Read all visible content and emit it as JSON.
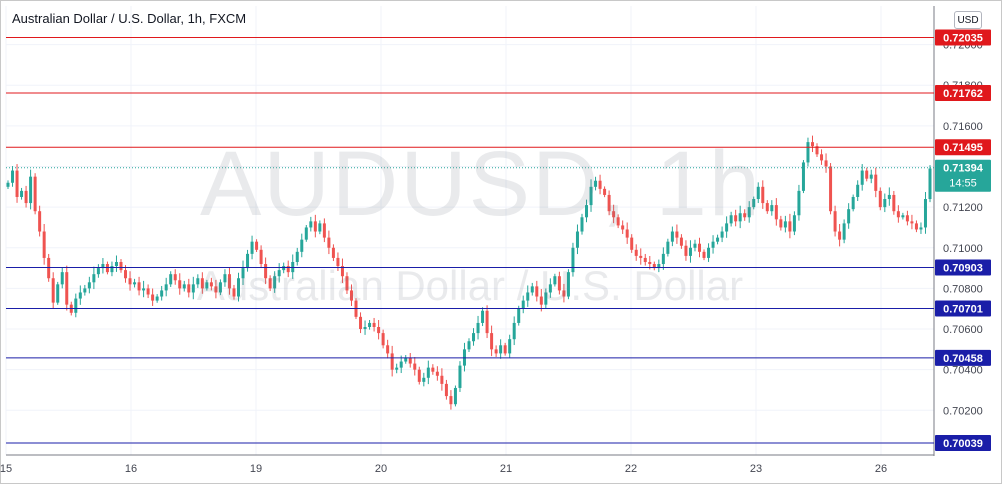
{
  "header": {
    "title": "Australian Dollar / U.S. Dollar, 1h, FXCM",
    "currency": "USD"
  },
  "watermark": {
    "symbol": "AUDUSD, 1h",
    "name": "Australian Dollar / U.S. Dollar"
  },
  "colors": {
    "up": "#26a69a",
    "down": "#ef5350",
    "resistance": "#e0181c",
    "support": "#1a1ea8",
    "current": "#26a69a"
  },
  "chart_data": {
    "type": "candlestick",
    "title": "Australian Dollar / U.S. Dollar, 1h, FXCM",
    "ylim": [
      0.6998,
      0.7219
    ],
    "y_ticks": [
      "0.70200",
      "0.70400",
      "0.70600",
      "0.70800",
      "0.71000",
      "0.71200",
      "0.71400",
      "0.71600",
      "0.71800",
      "0.72000"
    ],
    "x_ticks": [
      "15",
      "16",
      "19",
      "20",
      "21",
      "22",
      "23",
      "26"
    ],
    "grid": true,
    "horizontal_levels": [
      {
        "label": "0.72035",
        "value": 0.72035,
        "kind": "resistance"
      },
      {
        "label": "0.71762",
        "value": 0.71762,
        "kind": "resistance"
      },
      {
        "label": "0.71495",
        "value": 0.71495,
        "kind": "resistance"
      },
      {
        "label": "0.70903",
        "value": 0.70903,
        "kind": "support"
      },
      {
        "label": "0.70701",
        "value": 0.70701,
        "kind": "support"
      },
      {
        "label": "0.70458",
        "value": 0.70458,
        "kind": "support"
      },
      {
        "label": "0.70039",
        "value": 0.70039,
        "kind": "support"
      }
    ],
    "last_price": {
      "label": "0.71394",
      "value": 0.71394,
      "countdown": "14:55"
    },
    "closes": [
      0.7132,
      0.7138,
      0.7125,
      0.7128,
      0.7122,
      0.7135,
      0.7118,
      0.7108,
      0.7095,
      0.7085,
      0.7073,
      0.7082,
      0.7088,
      0.7072,
      0.7068,
      0.7075,
      0.7078,
      0.708,
      0.7083,
      0.7087,
      0.709,
      0.7092,
      0.7088,
      0.7091,
      0.7093,
      0.7089,
      0.7085,
      0.7082,
      0.7083,
      0.7079,
      0.708,
      0.7077,
      0.7074,
      0.7076,
      0.7079,
      0.7082,
      0.7087,
      0.7084,
      0.708,
      0.7082,
      0.7078,
      0.7082,
      0.7085,
      0.708,
      0.7083,
      0.7081,
      0.7078,
      0.7083,
      0.7087,
      0.708,
      0.7076,
      0.7085,
      0.709,
      0.7097,
      0.7103,
      0.7099,
      0.7092,
      0.7085,
      0.708,
      0.7086,
      0.7089,
      0.7091,
      0.7088,
      0.7093,
      0.7098,
      0.7104,
      0.711,
      0.7113,
      0.7108,
      0.7112,
      0.7105,
      0.71,
      0.7095,
      0.7091,
      0.7086,
      0.7079,
      0.7074,
      0.7066,
      0.706,
      0.7061,
      0.7063,
      0.7061,
      0.7058,
      0.7052,
      0.7048,
      0.704,
      0.7041,
      0.7044,
      0.7046,
      0.7043,
      0.704,
      0.7034,
      0.7036,
      0.7041,
      0.7039,
      0.7037,
      0.7033,
      0.7027,
      0.7023,
      0.7031,
      0.7042,
      0.705,
      0.7054,
      0.7058,
      0.7063,
      0.7069,
      0.7058,
      0.705,
      0.7048,
      0.7052,
      0.7048,
      0.7055,
      0.7063,
      0.707,
      0.7074,
      0.7078,
      0.7081,
      0.7076,
      0.7072,
      0.7078,
      0.7082,
      0.7086,
      0.7079,
      0.7076,
      0.7088,
      0.71,
      0.7108,
      0.7115,
      0.7121,
      0.713,
      0.7133,
      0.7129,
      0.7126,
      0.7118,
      0.7115,
      0.7111,
      0.7109,
      0.7105,
      0.7099,
      0.7096,
      0.7095,
      0.7093,
      0.7092,
      0.709,
      0.7092,
      0.7097,
      0.7103,
      0.7108,
      0.7105,
      0.7101,
      0.7096,
      0.71,
      0.7102,
      0.7098,
      0.7095,
      0.71,
      0.7103,
      0.7105,
      0.7108,
      0.7112,
      0.7116,
      0.7113,
      0.7117,
      0.7115,
      0.712,
      0.7124,
      0.713,
      0.7122,
      0.7118,
      0.7121,
      0.7114,
      0.711,
      0.7113,
      0.7108,
      0.7116,
      0.7128,
      0.7142,
      0.7152,
      0.715,
      0.7146,
      0.7143,
      0.714,
      0.7118,
      0.7108,
      0.7104,
      0.7112,
      0.7119,
      0.7125,
      0.7131,
      0.7138,
      0.7134,
      0.7136,
      0.7128,
      0.712,
      0.7124,
      0.7126,
      0.7118,
      0.7115,
      0.7116,
      0.7113,
      0.7112,
      0.7109,
      0.711,
      0.7124,
      0.7139
    ]
  }
}
